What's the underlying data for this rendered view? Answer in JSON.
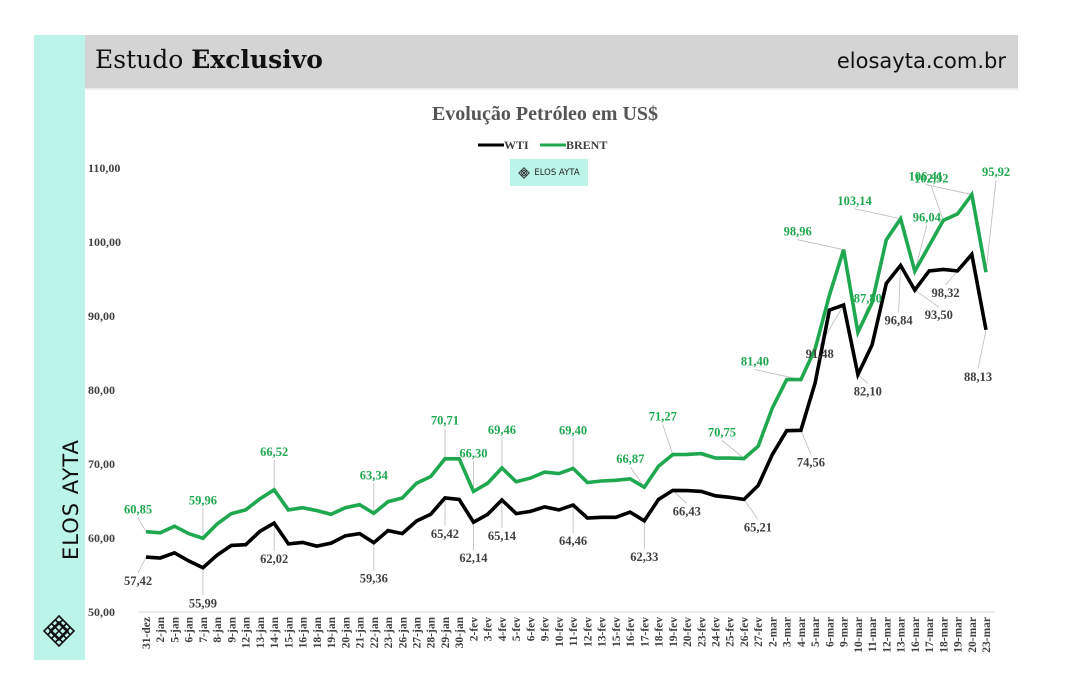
{
  "header": {
    "title_regular": "Estudo",
    "title_bold": "Exclusivo",
    "site": "elosayta.com.br"
  },
  "sidebar": {
    "brand": "ELOS AYTA",
    "logo_icon": "diamond-lattice-icon"
  },
  "watermark": {
    "label": "ELOS AYTA",
    "icon": "diamond-lattice-icon"
  },
  "colors": {
    "wti": "#000000",
    "brent": "#20a850",
    "accent": "#bdf4ea",
    "header_bg": "#d4d4d4"
  },
  "chart_data": {
    "type": "line",
    "title": "Evolução Petróleo em US$",
    "xlabel": "",
    "ylabel": "",
    "ylim": [
      50,
      110
    ],
    "yticks": [
      "50,00",
      "60,00",
      "70,00",
      "80,00",
      "90,00",
      "100,00",
      "110,00"
    ],
    "legend": "top-center",
    "grid": false,
    "categories": [
      "31-dez",
      "2-jan",
      "5-jan",
      "6-jan",
      "7-jan",
      "8-jan",
      "9-jan",
      "12-jan",
      "13-jan",
      "14-jan",
      "15-jan",
      "16-jan",
      "18-jan",
      "19-jan",
      "20-jan",
      "21-jan",
      "22-jan",
      "23-jan",
      "26-jan",
      "27-jan",
      "28-jan",
      "29-jan",
      "30-jan",
      "2-fev",
      "3-fev",
      "4-fev",
      "5-fev",
      "6-fev",
      "9-fev",
      "10-fev",
      "11-fev",
      "12-fev",
      "13-fev",
      "15-fev",
      "16-fev",
      "17-fev",
      "18-fev",
      "19-fev",
      "20-fev",
      "23-fev",
      "24-fev",
      "25-fev",
      "26-fev",
      "27-fev",
      "2-mar",
      "3-mar",
      "4-mar",
      "5-mar",
      "6-mar",
      "9-mar",
      "10-mar",
      "11-mar",
      "12-mar",
      "13-mar",
      "16-mar",
      "17-mar",
      "18-mar",
      "19-mar",
      "20-mar",
      "23-mar"
    ],
    "series": [
      {
        "name": "WTI",
        "color": "#000000",
        "values": [
          57.42,
          57.3,
          58.0,
          56.9,
          55.99,
          57.7,
          59.0,
          59.1,
          60.9,
          62.02,
          59.2,
          59.4,
          58.9,
          59.3,
          60.3,
          60.6,
          59.36,
          61.0,
          60.6,
          62.3,
          63.2,
          65.42,
          65.2,
          62.14,
          63.2,
          65.14,
          63.3,
          63.6,
          64.2,
          63.8,
          64.46,
          62.7,
          62.8,
          62.8,
          63.5,
          62.33,
          65.2,
          66.43,
          66.4,
          66.3,
          65.7,
          65.5,
          65.21,
          67.1,
          71.3,
          74.5,
          74.56,
          81.0,
          90.8,
          91.48,
          82.1,
          86.1,
          94.4,
          96.84,
          93.5,
          96.1,
          96.3,
          96.1,
          98.32,
          88.13
        ],
        "labels": {
          "0": "57,42",
          "4": "55,99",
          "9": "62,02",
          "16": "59,36",
          "21": "65,42",
          "23": "62,14",
          "25": "65,14",
          "30": "64,46",
          "35": "62,33",
          "37": "66,43",
          "42": "65,21",
          "46": "74,56",
          "49": "91,48",
          "50": "82,10",
          "53": "96,84",
          "54": "93,50",
          "57": "98,32",
          "59": "88,13"
        }
      },
      {
        "name": "BRENT",
        "color": "#20a850",
        "values": [
          60.85,
          60.7,
          61.6,
          60.6,
          59.96,
          61.9,
          63.3,
          63.8,
          65.3,
          66.52,
          63.8,
          64.1,
          63.7,
          63.2,
          64.1,
          64.5,
          63.34,
          64.9,
          65.4,
          67.4,
          68.3,
          70.71,
          70.7,
          66.3,
          67.4,
          69.46,
          67.6,
          68.1,
          68.9,
          68.7,
          69.4,
          67.5,
          67.7,
          67.8,
          68.0,
          66.87,
          69.7,
          71.27,
          71.3,
          71.4,
          70.8,
          70.8,
          70.75,
          72.4,
          77.6,
          81.4,
          81.4,
          85.6,
          92.8,
          98.96,
          87.8,
          91.8,
          100.3,
          103.14,
          96.04,
          99.5,
          102.92,
          103.8,
          106.41,
          95.92
        ],
        "labels": {
          "0": "60,85",
          "4": "59,96",
          "9": "66,52",
          "16": "63,34",
          "21": "70,71",
          "23": "66,30",
          "25": "69,46",
          "30": "69,40",
          "35": "66,87",
          "37": "71,27",
          "42": "70,75",
          "46": "81,40",
          "49": "98,96",
          "50": "87,80",
          "53": "103,14",
          "54": "96,04",
          "56": "102,92",
          "58": "106,41",
          "59": "95,92"
        }
      }
    ]
  }
}
